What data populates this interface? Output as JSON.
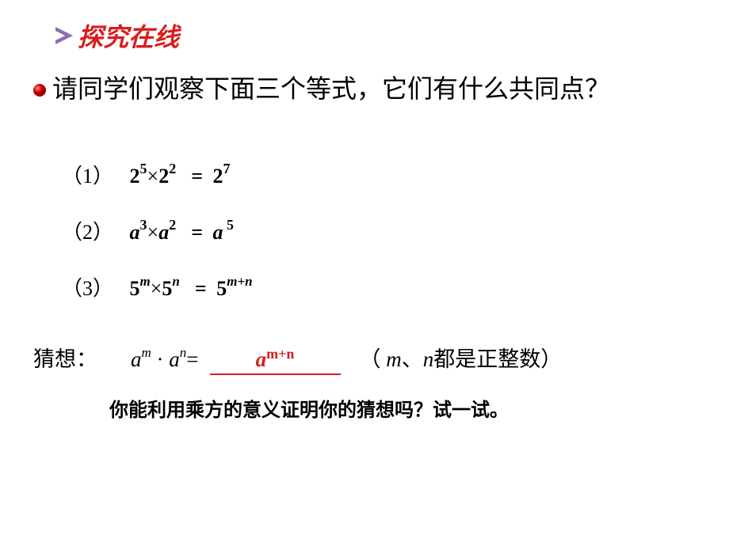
{
  "colors": {
    "header_arrow": "#8a6faf",
    "header_text": "#d81e1e",
    "bullet": "#990000",
    "body_text": "#000000",
    "underline": "#d81e1e",
    "fill_text": "#d81e1e"
  },
  "header": {
    "title": "探究在线"
  },
  "question": {
    "text": "请同学们观察下面三个等式，它们有什么共同点？"
  },
  "equations": [
    {
      "label": "（1）",
      "base1": "2",
      "exp1": "5",
      "op": "×",
      "base2": "2",
      "exp2": "2",
      "res_base": "2",
      "res_exp": "7",
      "italic": false
    },
    {
      "label": "（2）",
      "base1": "a",
      "exp1": "3",
      "op": "×",
      "base2": "a",
      "exp2": "2",
      "res_base": "a",
      "res_exp": "5",
      "italic": true,
      "space_exp": true
    },
    {
      "label": "（3）",
      "base1": "5",
      "exp1": "m",
      "op": "×",
      "base2": "5",
      "exp2": "n",
      "res_base": "5",
      "res_exp": "m+n",
      "italic_exp": true
    }
  ],
  "guess": {
    "label": "猜想：",
    "lhs_base": "a",
    "lhs_exp1": "m",
    "lhs_dot": "·",
    "lhs_exp2": "n",
    "equals": "=",
    "fill_base": "a",
    "fill_exp": "m+n",
    "condition_open": "（",
    "condition_var1": "m",
    "condition_sep": "、",
    "condition_var2": "n",
    "condition_text": "都是正整数）"
  },
  "try": {
    "text": "你能利用乘方的意义证明你的猜想吗？试一试。"
  }
}
